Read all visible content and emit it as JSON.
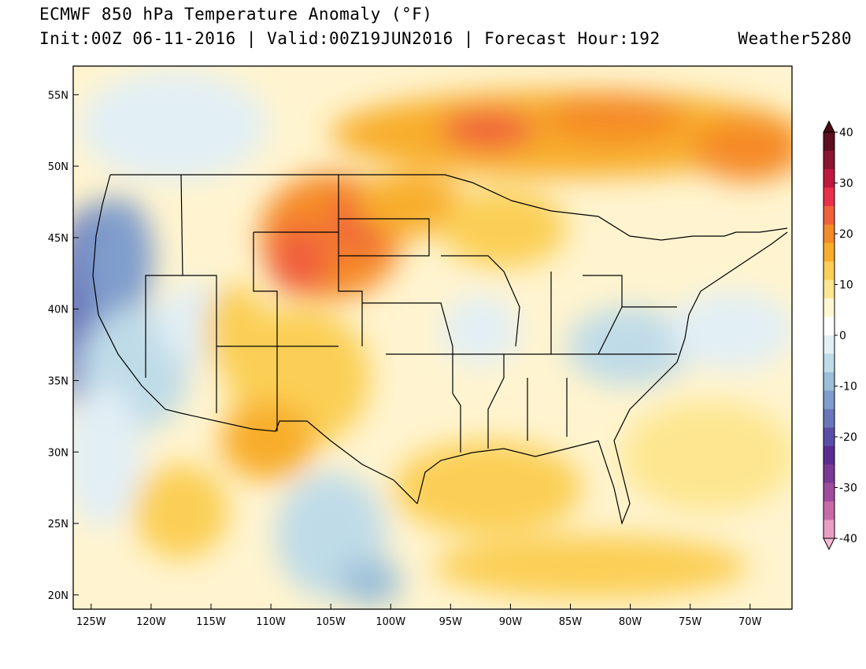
{
  "header": {
    "title": "ECMWF 850 hPa Temperature Anomaly (°F)",
    "subtitle": "Init:00Z 06-11-2016 | Valid:00Z19JUN2016 | Forecast Hour:192",
    "brand": "Weather5280"
  },
  "map": {
    "lon_range": [
      -126.5,
      -66.5
    ],
    "lat_range": [
      19,
      57
    ],
    "lon_ticks": [
      "125W",
      "120W",
      "115W",
      "110W",
      "105W",
      "100W",
      "95W",
      "90W",
      "85W",
      "80W",
      "75W",
      "70W"
    ],
    "lat_ticks": [
      "55N",
      "50N",
      "45N",
      "40N",
      "35N",
      "30N",
      "25N",
      "20N"
    ]
  },
  "colorbar": {
    "labels": [
      "40",
      "30",
      "20",
      "10",
      "0",
      "-10",
      "-20",
      "-30",
      "-40"
    ],
    "colors": [
      "#5c0f1e",
      "#8a1530",
      "#c0183e",
      "#e8304a",
      "#f0603a",
      "#f58a28",
      "#f8ad2a",
      "#fbcf55",
      "#fde68f",
      "#fff7d2",
      "#ffffff",
      "#e2eff5",
      "#bfdbe8",
      "#9bbfd9",
      "#7f9dcc",
      "#6a77bb",
      "#5a4fa6",
      "#5a2e91",
      "#7a3a95",
      "#a04c9f",
      "#c76aaa",
      "#ea9ec4"
    ]
  }
}
